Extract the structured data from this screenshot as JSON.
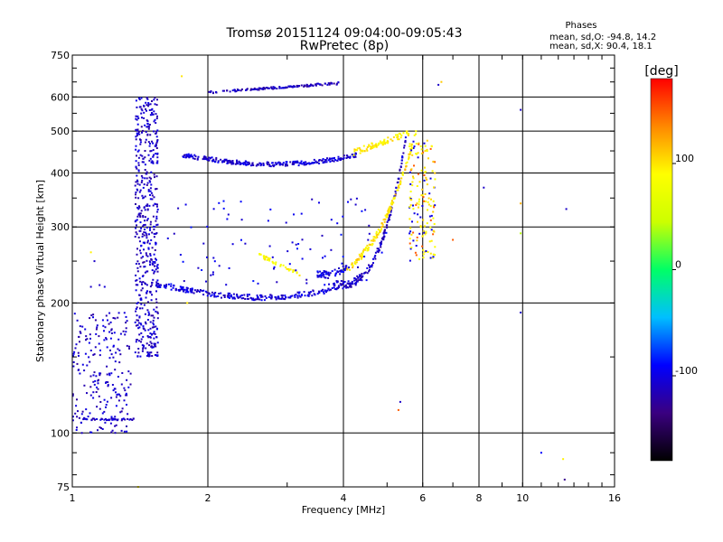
{
  "chart_data": {
    "type": "scatter",
    "title": "Tromsø 20151124 09:04:00-09:05:43",
    "subtitle": "RwPretec (8p)",
    "xlabel": "Frequency [MHz]",
    "ylabel": "Stationary phase Virtual Height [km]",
    "x_scale": "log",
    "y_scale": "log",
    "xlim": [
      1,
      16
    ],
    "ylim": [
      75,
      750
    ],
    "x_ticks": [
      1,
      2,
      4,
      6,
      8,
      10,
      16
    ],
    "y_ticks": [
      75,
      100,
      200,
      300,
      400,
      500,
      600,
      750
    ],
    "x_gridlines": [
      2,
      4,
      6,
      8,
      10
    ],
    "y_gridlines": [
      100,
      200,
      300,
      400,
      500,
      600
    ],
    "grid": true,
    "legend": {
      "heading": "Phases",
      "line1": "mean, sd,O: -94.8, 14.2",
      "line2": "mean, sd,X:  90.4, 18.1",
      "placement": "top-right"
    },
    "colorbar": {
      "label": "[deg]",
      "range": [
        -180,
        180
      ],
      "ticks": [
        100,
        0,
        -100
      ],
      "colors": [
        "#000000",
        "#3a0080",
        "#0000ff",
        "#00bfff",
        "#00ff66",
        "#ccff00",
        "#ffff00",
        "#ff8800",
        "#ff0000"
      ],
      "placement": "right"
    },
    "traces": [
      {
        "name": "low-freq-scatter",
        "f": [
          1.0,
          1.35
        ],
        "h": [
          100,
          190
        ],
        "phase": -110,
        "n": 220,
        "kind": "cloud"
      },
      {
        "name": "base-line-105km",
        "f": [
          1.05,
          1.38
        ],
        "h": [
          107,
          108
        ],
        "phase": -110,
        "n": 40,
        "kind": "line"
      },
      {
        "name": "cusp-1.5",
        "f": [
          1.38,
          1.55
        ],
        "h": [
          150,
          600
        ],
        "phase": -110,
        "n": 520,
        "kind": "cloud"
      },
      {
        "name": "f-layer-o-lower",
        "f": [
          1.5,
          3.8
        ],
        "h": [
          206,
          225
        ],
        "phase": -105,
        "n": 220,
        "kind": "curveLow"
      },
      {
        "name": "f-layer-o-rise",
        "f": [
          3.8,
          5.5
        ],
        "h": [
          220,
          480
        ],
        "phase": -110,
        "n": 180,
        "kind": "riseO"
      },
      {
        "name": "f-layer-x-upper",
        "f": [
          3.5,
          5.8
        ],
        "h": [
          230,
          500
        ],
        "phase": 100,
        "n": 200,
        "kind": "riseX"
      },
      {
        "name": "x-trace-yellow",
        "f": [
          5.6,
          6.4
        ],
        "h": [
          250,
          480
        ],
        "phase": 95,
        "n": 160,
        "kind": "cloudX"
      },
      {
        "name": "mid-yellow-arc",
        "f": [
          2.6,
          3.2
        ],
        "h": [
          230,
          260
        ],
        "phase": 90,
        "n": 40,
        "kind": "arc"
      },
      {
        "name": "second-hop-420",
        "f": [
          1.75,
          4.3
        ],
        "h": [
          410,
          470
        ],
        "phase": -105,
        "n": 260,
        "kind": "hop2"
      },
      {
        "name": "second-hop-upper-yellow",
        "f": [
          4.2,
          5.6
        ],
        "h": [
          430,
          500
        ],
        "phase": 95,
        "n": 80,
        "kind": "hop2x"
      },
      {
        "name": "third-hop-620",
        "f": [
          2.0,
          3.9
        ],
        "h": [
          610,
          645
        ],
        "phase": -115,
        "n": 130,
        "kind": "hop3"
      },
      {
        "name": "sparse-mid",
        "f": [
          1.6,
          5.0
        ],
        "h": [
          220,
          350
        ],
        "phase": -100,
        "n": 90,
        "kind": "sparse"
      }
    ],
    "points": [
      {
        "f": 1.1,
        "h": 218,
        "phase": -110
      },
      {
        "f": 1.15,
        "h": 220,
        "phase": -110
      },
      {
        "f": 1.18,
        "h": 218,
        "phase": -105
      },
      {
        "f": 1.12,
        "h": 250,
        "phase": -110
      },
      {
        "f": 1.1,
        "h": 262,
        "phase": 95
      },
      {
        "f": 1.05,
        "h": 100,
        "phase": -110
      },
      {
        "f": 1.4,
        "h": 75,
        "phase": 95
      },
      {
        "f": 8.2,
        "h": 370,
        "phase": -110
      },
      {
        "f": 9.9,
        "h": 190,
        "phase": -110
      },
      {
        "f": 9.9,
        "h": 560,
        "phase": -110
      },
      {
        "f": 9.9,
        "h": 290,
        "phase": 40
      },
      {
        "f": 9.9,
        "h": 340,
        "phase": 120
      },
      {
        "f": 12.5,
        "h": 330,
        "phase": -110
      },
      {
        "f": 11.0,
        "h": 90,
        "phase": -90
      },
      {
        "f": 12.3,
        "h": 87,
        "phase": 95
      },
      {
        "f": 12.4,
        "h": 78,
        "phase": -130
      },
      {
        "f": 6.5,
        "h": 640,
        "phase": -110
      },
      {
        "f": 6.6,
        "h": 650,
        "phase": 110
      },
      {
        "f": 5.3,
        "h": 113,
        "phase": 150
      },
      {
        "f": 5.35,
        "h": 118,
        "phase": -110
      },
      {
        "f": 1.75,
        "h": 670,
        "phase": 100
      },
      {
        "f": 1.8,
        "h": 200,
        "phase": 100
      },
      {
        "f": 7.0,
        "h": 280,
        "phase": 150
      }
    ]
  }
}
